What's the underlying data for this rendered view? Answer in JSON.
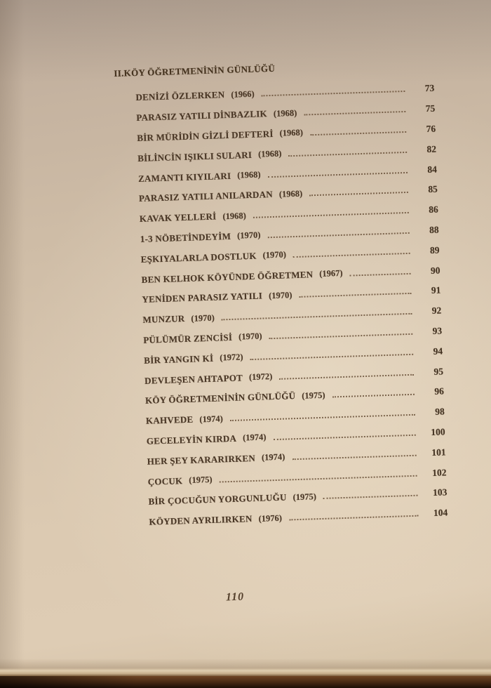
{
  "toc": {
    "section_heading": "II.KÖY ÖĞRETMENİNİN GÜNLÜĞÜ",
    "entries": [
      {
        "title": "DENİZİ ÖZLERKEN",
        "year": "(1966)",
        "page": "73"
      },
      {
        "title": "PARASIZ YATILI DİNBAZLIK",
        "year": "(1968)",
        "page": "75"
      },
      {
        "title": "BİR MÜRİDİN GİZLİ DEFTERİ",
        "year": "(1968)",
        "page": "76"
      },
      {
        "title": "BİLİNCİN IŞIKLI SULARI",
        "year": "(1968)",
        "page": "82"
      },
      {
        "title": "ZAMANTI KIYILARI",
        "year": "(1968)",
        "page": "84"
      },
      {
        "title": "PARASIZ YATILI ANILARDAN",
        "year": "(1968)",
        "page": "85"
      },
      {
        "title": "KAVAK YELLERİ",
        "year": "(1968)",
        "page": "86"
      },
      {
        "title": "1-3 NÖBETİNDEYİM",
        "year": "(1970)",
        "page": "88"
      },
      {
        "title": "EŞKIYALARLA DOSTLUK",
        "year": "(1970)",
        "page": "89"
      },
      {
        "title": "BEN KELHOK KÖYÜNDE ÖĞRETMEN",
        "year": "(1967)",
        "page": "90"
      },
      {
        "title": "YENİDEN PARASIZ YATILI",
        "year": "(1970)",
        "page": "91"
      },
      {
        "title": "MUNZUR",
        "year": "(1970)",
        "page": "92"
      },
      {
        "title": "PÜLÜMÜR ZENCİSİ",
        "year": "(1970)",
        "page": "93"
      },
      {
        "title": "BİR YANGIN Kİ",
        "year": "(1972)",
        "page": "94"
      },
      {
        "title": "DEVLEŞEN AHTAPOT",
        "year": "(1972)",
        "page": "95"
      },
      {
        "title": "KÖY ÖĞRETMENİNİN GÜNLÜĞÜ",
        "year": "(1975)",
        "page": "96"
      },
      {
        "title": "KAHVEDE",
        "year": "(1974)",
        "page": "98"
      },
      {
        "title": "GECELEYİN KIRDA",
        "year": "(1974)",
        "page": "100"
      },
      {
        "title": "HER ŞEY KARARIRKEN",
        "year": "(1974)",
        "page": "101"
      },
      {
        "title": "ÇOCUK",
        "year": "(1975)",
        "page": "102"
      },
      {
        "title": "BİR ÇOCUĞUN YORGUNLUĞU",
        "year": "(1975)",
        "page": "103"
      },
      {
        "title": "KÖYDEN AYRILIRKEN",
        "year": "(1976)",
        "page": "104"
      }
    ],
    "folio": "110"
  },
  "colors": {
    "paper": "#d6c4ad",
    "ink": "#4a3726",
    "table_surface": "#4a2a14"
  }
}
